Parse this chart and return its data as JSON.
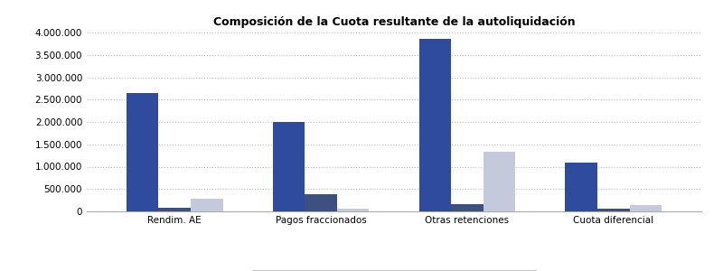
{
  "title": "Composición de la Cuota resultante de la autoliquidación",
  "categories": [
    "Rendim. AE",
    "Pagos fraccionados",
    "Otras retenciones",
    "Cuota diferencial"
  ],
  "series": {
    "Directa": [
      2650000,
      2000000,
      3850000,
      1100000
    ],
    "Objetiva no agrícola": [
      80000,
      390000,
      160000,
      60000
    ],
    "Objetiva agrícola": [
      290000,
      60000,
      1340000,
      140000
    ]
  },
  "colors": {
    "Directa": "#2E4B9E",
    "Objetiva no agrícola": "#3D5080",
    "Objetiva agrícola": "#C5C9DC"
  },
  "ylim": [
    0,
    4000000
  ],
  "yticks": [
    0,
    500000,
    1000000,
    1500000,
    2000000,
    2500000,
    3000000,
    3500000,
    4000000
  ],
  "background_color": "#FFFFFF",
  "plot_bg_color": "#FFFFFF",
  "grid_color": "#BBBBBB",
  "bar_width": 0.22,
  "title_fontsize": 9,
  "tick_fontsize": 7.5,
  "legend_fontsize": 7.5
}
